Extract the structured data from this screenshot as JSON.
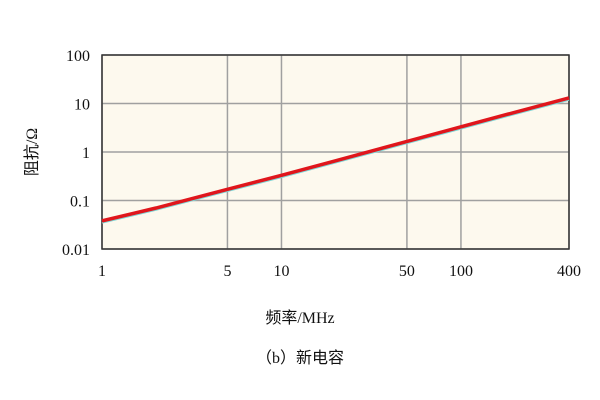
{
  "chart_data": {
    "type": "line",
    "title": "",
    "caption": "（b）新电容",
    "xlabel": "频率/MHz",
    "ylabel": "阻抗/Ω",
    "xscale": "log",
    "yscale": "log",
    "xlim": [
      1,
      400
    ],
    "ylim": [
      0.01,
      100
    ],
    "xticks": [
      1,
      5,
      10,
      50,
      100,
      400
    ],
    "xtick_labels": [
      "1",
      "5",
      "10",
      "50",
      "100",
      "400"
    ],
    "yticks": [
      0.01,
      0.1,
      1,
      10,
      100
    ],
    "ytick_labels": [
      "0.01",
      "0.1",
      "1",
      "10",
      "100"
    ],
    "grid": true,
    "colors": {
      "line": "#e0161c",
      "background": "#fdf9ee",
      "grid": "#a0a0a0"
    },
    "series": [
      {
        "x": [
          1,
          2,
          5,
          10,
          20,
          50,
          100,
          200,
          400
        ],
        "y": [
          0.038,
          0.07,
          0.17,
          0.33,
          0.66,
          1.65,
          3.3,
          6.6,
          13
        ]
      }
    ]
  }
}
